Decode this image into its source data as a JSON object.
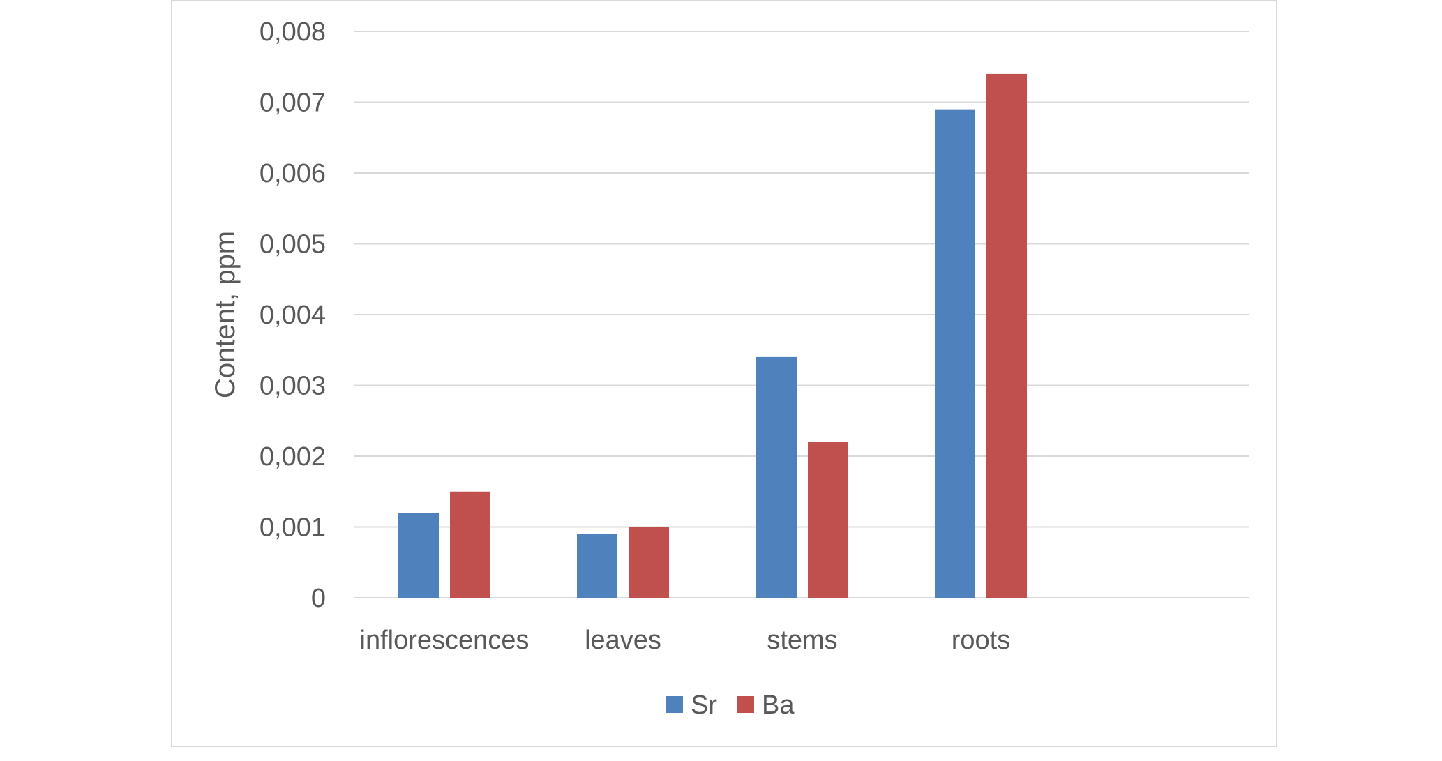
{
  "chart_data": {
    "type": "bar",
    "categories": [
      "inflorescences",
      "leaves",
      "stems",
      "roots"
    ],
    "series": [
      {
        "name": "Sr",
        "color": "#4f81bd",
        "values": [
          0.0012,
          0.0009,
          0.0034,
          0.0069
        ]
      },
      {
        "name": "Ba",
        "color": "#c0504d",
        "values": [
          0.0015,
          0.001,
          0.0022,
          0.0074
        ]
      }
    ],
    "ylabel": "Content, ppm",
    "xlabel": "",
    "ylim": [
      0,
      0.008
    ],
    "yticks": [
      0,
      0.001,
      0.002,
      0.003,
      0.004,
      0.005,
      0.006,
      0.007,
      0.008
    ],
    "ytick_labels": [
      "0",
      "0,001",
      "0,002",
      "0,003",
      "0,004",
      "0,005",
      "0,006",
      "0,007",
      "0,008"
    ],
    "grid": true,
    "legend_position": "bottom",
    "gridline_color": "#d9d9d9",
    "frame_color": "#d9d9d9",
    "text_color": "#595959"
  }
}
